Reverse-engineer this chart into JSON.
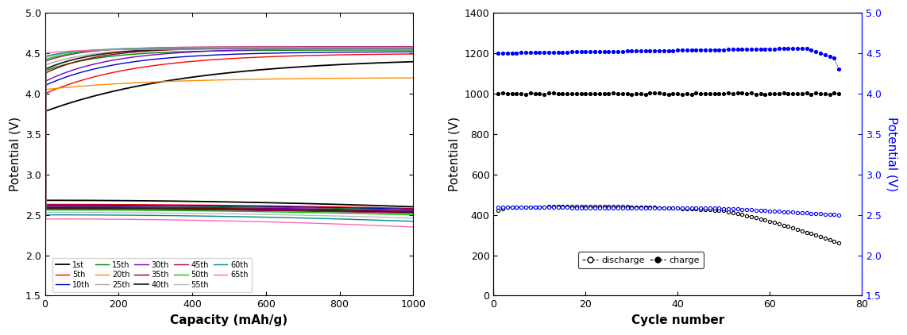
{
  "left_panel": {
    "xlabel": "Capacity (mAh/g)",
    "ylabel": "Potential (V)",
    "xlim": [
      0,
      1000
    ],
    "ylim": [
      1.5,
      5.0
    ],
    "yticks": [
      1.5,
      2.0,
      2.5,
      3.0,
      3.5,
      4.0,
      4.5,
      5.0
    ],
    "xticks": [
      0,
      200,
      400,
      600,
      800,
      1000
    ],
    "cycles": [
      {
        "label": "1st",
        "color": "#000000",
        "lw": 1.3,
        "dis_flat": 2.68,
        "charge_start": 3.78,
        "charge_end": 4.45,
        "tau": 0.4,
        "dis_end_drop": 0.08
      },
      {
        "label": "5th",
        "color": "#ff0000",
        "lw": 1.0,
        "dis_flat": 2.63,
        "charge_start": 4.0,
        "charge_end": 4.5,
        "tau": 0.25,
        "dis_end_drop": 0.05
      },
      {
        "label": "10th",
        "color": "#0000cc",
        "lw": 1.0,
        "dis_flat": 2.62,
        "charge_start": 4.1,
        "charge_end": 4.52,
        "tau": 0.2,
        "dis_end_drop": 0.05
      },
      {
        "label": "15th",
        "color": "#008000",
        "lw": 1.0,
        "dis_flat": 2.61,
        "charge_start": 4.28,
        "charge_end": 4.54,
        "tau": 0.15,
        "dis_end_drop": 0.05
      },
      {
        "label": "20th",
        "color": "#ff8c00",
        "lw": 1.0,
        "dis_flat": 2.6,
        "charge_start": 4.05,
        "charge_end": 4.2,
        "tau": 0.3,
        "dis_end_drop": 0.05
      },
      {
        "label": "25th",
        "color": "#aaaaaa",
        "lw": 1.0,
        "dis_flat": 2.6,
        "charge_start": 4.35,
        "charge_end": 4.56,
        "tau": 0.12,
        "dis_end_drop": 0.05
      },
      {
        "label": "30th",
        "color": "#7700cc",
        "lw": 1.0,
        "dis_flat": 2.6,
        "charge_start": 4.15,
        "charge_end": 4.56,
        "tau": 0.18,
        "dis_end_drop": 0.05
      },
      {
        "label": "35th",
        "color": "#8b0000",
        "lw": 1.0,
        "dis_flat": 2.59,
        "charge_start": 4.25,
        "charge_end": 4.57,
        "tau": 0.14,
        "dis_end_drop": 0.05
      },
      {
        "label": "40th",
        "color": "#222222",
        "lw": 1.3,
        "dis_flat": 2.58,
        "charge_start": 4.3,
        "charge_end": 4.57,
        "tau": 0.13,
        "dis_end_drop": 0.05
      },
      {
        "label": "45th",
        "color": "#aa0055",
        "lw": 1.0,
        "dis_flat": 2.57,
        "charge_start": 4.4,
        "charge_end": 4.58,
        "tau": 0.11,
        "dis_end_drop": 0.05
      },
      {
        "label": "50th",
        "color": "#00cc00",
        "lw": 1.0,
        "dis_flat": 2.56,
        "charge_start": 4.42,
        "charge_end": 4.57,
        "tau": 0.1,
        "dis_end_drop": 0.06
      },
      {
        "label": "55th",
        "color": "#bbbbbb",
        "lw": 1.0,
        "dis_flat": 2.53,
        "charge_start": 4.44,
        "charge_end": 4.57,
        "tau": 0.09,
        "dis_end_drop": 0.07
      },
      {
        "label": "60th",
        "color": "#008b8b",
        "lw": 1.0,
        "dis_flat": 2.5,
        "charge_start": 4.46,
        "charge_end": 4.56,
        "tau": 0.09,
        "dis_end_drop": 0.08
      },
      {
        "label": "65th",
        "color": "#ff69b4",
        "lw": 1.0,
        "dis_flat": 2.45,
        "charge_start": 4.5,
        "charge_end": 4.55,
        "tau": 0.09,
        "dis_end_drop": 0.1
      }
    ]
  },
  "right_panel": {
    "xlabel": "Cycle number",
    "ylabel_left": "Potential (V)",
    "ylabel_right": "Potential (V)",
    "xlim": [
      0,
      80
    ],
    "ylim_left": [
      0,
      1400
    ],
    "ylim_right": [
      1.5,
      5.0
    ],
    "xticks": [
      0,
      20,
      40,
      60,
      80
    ],
    "yticks_left": [
      0,
      200,
      400,
      600,
      800,
      1000,
      1200,
      1400
    ],
    "yticks_right": [
      1.5,
      2.0,
      2.5,
      3.0,
      3.5,
      4.0,
      4.5,
      5.0
    ],
    "n_cycles": 75,
    "dis_cap_plateau": 435,
    "dis_cap_plateau_end_cycle": 50,
    "dis_cap_end": 260,
    "charge_cap": 1000,
    "charge_volt_start": 4.5,
    "charge_volt_peak": 4.56,
    "charge_volt_peak_cycle": 68,
    "charge_volt_last": 4.3,
    "dis_volt_start": 2.6,
    "dis_volt_end": 2.55
  }
}
